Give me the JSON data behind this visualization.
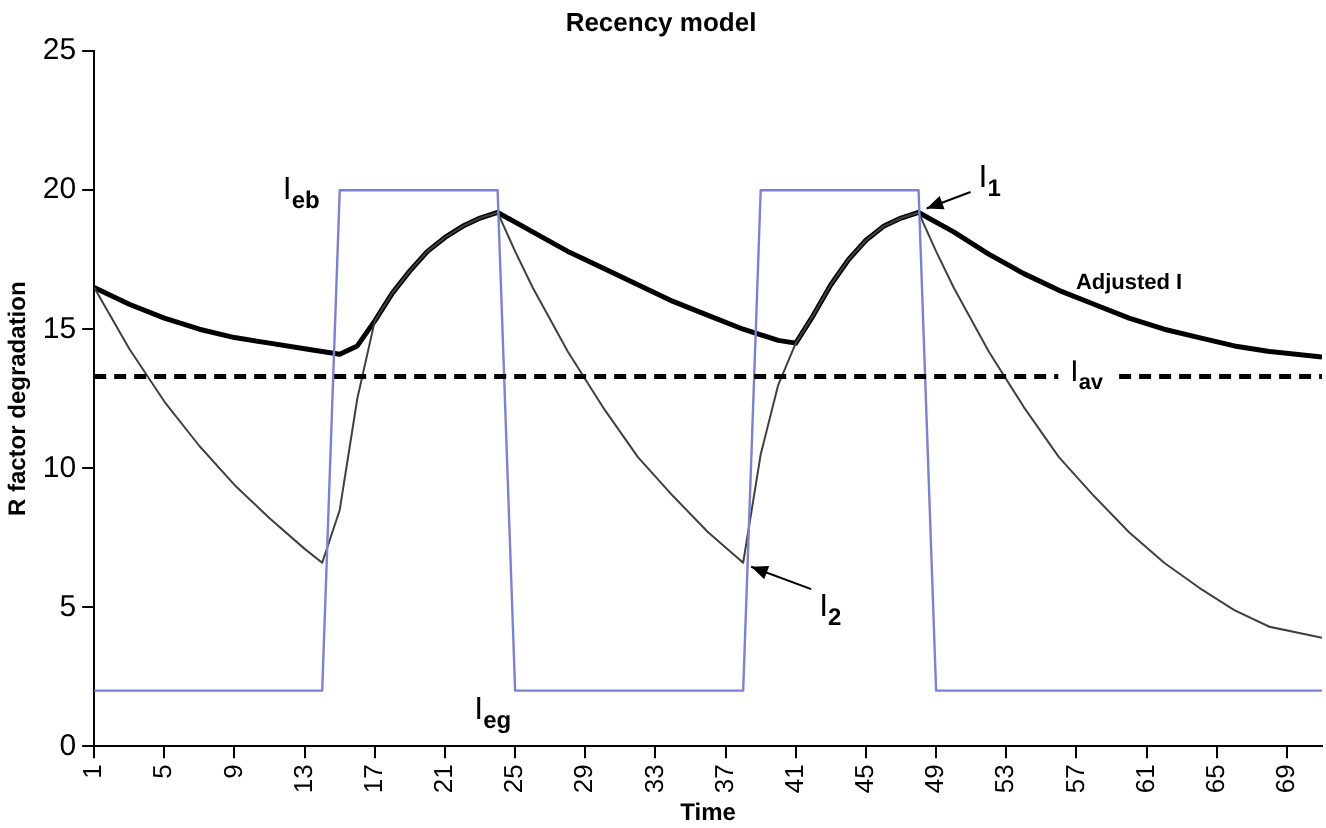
{
  "chart_data": {
    "type": "line",
    "title": "Recency model",
    "xlabel": "Time",
    "ylabel": "R factor degradation",
    "xlim": [
      1,
      71
    ],
    "xticks": [
      1,
      5,
      9,
      13,
      17,
      21,
      25,
      29,
      33,
      37,
      41,
      45,
      49,
      53,
      57,
      61,
      65,
      69
    ],
    "ylim": [
      0,
      25
    ],
    "yticks": [
      0,
      5,
      10,
      15,
      20,
      25
    ],
    "grid": false,
    "legend": false,
    "marker": "none",
    "series": [
      {
        "color": "#7b80d8",
        "x": [
          1,
          14,
          15,
          24,
          25,
          38,
          39,
          48,
          49,
          71
        ],
        "values": [
          2,
          2,
          20,
          20,
          2,
          2,
          20,
          20,
          2,
          2
        ]
      },
      {
        "color": "#404040",
        "x": [
          1,
          3,
          5,
          7,
          9,
          11,
          13,
          14,
          15,
          16,
          17,
          18,
          19,
          20,
          21,
          22,
          23,
          24,
          25,
          26,
          28,
          30,
          32,
          34,
          36,
          38,
          39,
          40,
          41,
          42,
          43,
          44,
          45,
          46,
          47,
          48,
          49,
          50,
          52,
          54,
          56,
          58,
          60,
          62,
          64,
          66,
          68,
          71
        ],
        "values": [
          16.5,
          14.3,
          12.4,
          10.8,
          9.4,
          8.2,
          7.1,
          6.6,
          8.5,
          12.5,
          15.3,
          16.3,
          17.1,
          17.8,
          18.3,
          18.7,
          19.0,
          19.2,
          17.8,
          16.5,
          14.2,
          12.2,
          10.4,
          9.0,
          7.7,
          6.6,
          10.5,
          13.0,
          14.5,
          15.5,
          16.6,
          17.5,
          18.2,
          18.7,
          19.0,
          19.2,
          17.8,
          16.5,
          14.2,
          12.2,
          10.4,
          9.0,
          7.7,
          6.6,
          5.7,
          4.9,
          4.3,
          3.9
        ]
      },
      {
        "name": "Adjusted I",
        "color": "#000000",
        "x": [
          1,
          3,
          5,
          7,
          9,
          11,
          13,
          15,
          16,
          17,
          18,
          19,
          20,
          21,
          22,
          23,
          24,
          26,
          28,
          30,
          32,
          34,
          36,
          38,
          40,
          41,
          42,
          43,
          44,
          45,
          46,
          47,
          48,
          50,
          52,
          54,
          56,
          58,
          60,
          62,
          64,
          66,
          68,
          71
        ],
        "values": [
          16.5,
          15.9,
          15.4,
          15.0,
          14.7,
          14.5,
          14.3,
          14.1,
          14.4,
          15.3,
          16.3,
          17.1,
          17.8,
          18.3,
          18.7,
          19.0,
          19.2,
          18.5,
          17.8,
          17.2,
          16.6,
          16.0,
          15.5,
          15.0,
          14.6,
          14.5,
          15.5,
          16.6,
          17.5,
          18.2,
          18.7,
          19.0,
          19.2,
          18.5,
          17.7,
          17.0,
          16.4,
          15.9,
          15.4,
          15.0,
          14.7,
          14.4,
          14.2,
          14.0
        ]
      }
    ],
    "ref_lines": [
      {
        "axis": "y",
        "value": 13.3,
        "label": "I$_{av}$",
        "color": "#000000",
        "line_style": "dashed"
      }
    ],
    "annotations": [
      {
        "text": "I$_{eb}$",
        "x": 15,
        "y": 20
      },
      {
        "text": "I$_{eg}$",
        "x": 25,
        "y": 2
      },
      {
        "text": "I$_{1}$",
        "x": 48,
        "y": 19.2
      },
      {
        "text": "I$_{2}$",
        "x": 38,
        "y": 6.6
      }
    ]
  }
}
